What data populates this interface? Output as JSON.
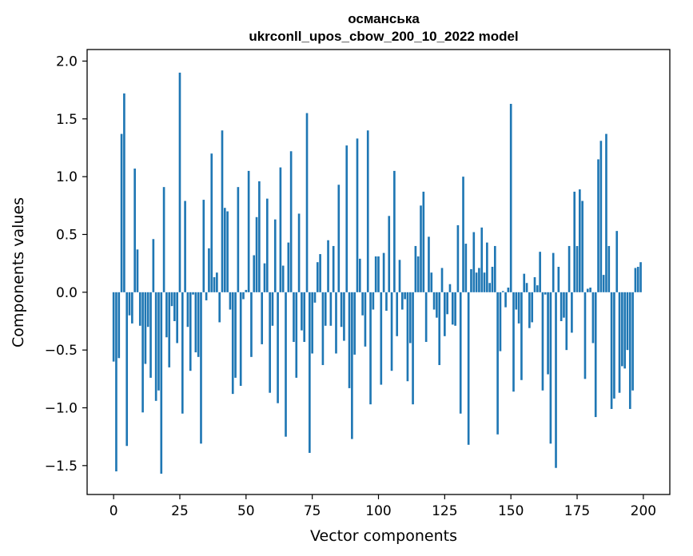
{
  "chart_data": {
    "type": "bar",
    "title": "османська",
    "subtitle": "ukrconll_upos_cbow_200_10_2022 model",
    "xlabel": "Vector components",
    "ylabel": "Components values",
    "xlim": [
      -10,
      210
    ],
    "ylim": [
      -1.75,
      2.1
    ],
    "xticks": [
      0,
      25,
      50,
      75,
      100,
      125,
      150,
      175,
      200
    ],
    "yticks": [
      -1.5,
      -1.0,
      -0.5,
      0.0,
      0.5,
      1.0,
      1.5,
      2.0
    ],
    "ytick_labels": [
      "−1.5",
      "−1.0",
      "−0.5",
      "0.0",
      "0.5",
      "1.0",
      "1.5",
      "2.0"
    ],
    "bar_color": "#1f77b4",
    "grid": false,
    "x": [
      0,
      1,
      2,
      3,
      4,
      5,
      6,
      7,
      8,
      9,
      10,
      11,
      12,
      13,
      14,
      15,
      16,
      17,
      18,
      19,
      20,
      21,
      22,
      23,
      24,
      25,
      26,
      27,
      28,
      29,
      30,
      31,
      32,
      33,
      34,
      35,
      36,
      37,
      38,
      39,
      40,
      41,
      42,
      43,
      44,
      45,
      46,
      47,
      48,
      49,
      50,
      51,
      52,
      53,
      54,
      55,
      56,
      57,
      58,
      59,
      60,
      61,
      62,
      63,
      64,
      65,
      66,
      67,
      68,
      69,
      70,
      71,
      72,
      73,
      74,
      75,
      76,
      77,
      78,
      79,
      80,
      81,
      82,
      83,
      84,
      85,
      86,
      87,
      88,
      89,
      90,
      91,
      92,
      93,
      94,
      95,
      96,
      97,
      98,
      99,
      100,
      101,
      102,
      103,
      104,
      105,
      106,
      107,
      108,
      109,
      110,
      111,
      112,
      113,
      114,
      115,
      116,
      117,
      118,
      119,
      120,
      121,
      122,
      123,
      124,
      125,
      126,
      127,
      128,
      129,
      130,
      131,
      132,
      133,
      134,
      135,
      136,
      137,
      138,
      139,
      140,
      141,
      142,
      143,
      144,
      145,
      146,
      147,
      148,
      149,
      150,
      151,
      152,
      153,
      154,
      155,
      156,
      157,
      158,
      159,
      160,
      161,
      162,
      163,
      164,
      165,
      166,
      167,
      168,
      169,
      170,
      171,
      172,
      173,
      174,
      175,
      176,
      177,
      178,
      179,
      180,
      181,
      182,
      183,
      184,
      185,
      186,
      187,
      188,
      189,
      190,
      191,
      192,
      193,
      194,
      195,
      196,
      197,
      198,
      199
    ],
    "values": [
      -0.6,
      -1.55,
      -0.57,
      1.37,
      1.72,
      -1.33,
      -0.2,
      -0.27,
      1.07,
      0.37,
      -0.29,
      -1.04,
      -0.62,
      -0.3,
      -0.74,
      0.46,
      -0.94,
      -0.85,
      -1.57,
      0.91,
      -0.39,
      -0.65,
      -0.12,
      -0.25,
      -0.44,
      1.9,
      -1.05,
      0.79,
      -0.3,
      -0.68,
      -0.02,
      -0.52,
      -0.56,
      -1.31,
      0.8,
      -0.07,
      0.38,
      1.2,
      0.13,
      0.17,
      -0.26,
      1.4,
      0.73,
      0.7,
      -0.15,
      -0.88,
      -0.74,
      0.91,
      -0.81,
      -0.06,
      0.02,
      1.05,
      -0.56,
      0.32,
      0.65,
      0.96,
      -0.45,
      0.25,
      0.81,
      -0.87,
      -0.29,
      0.63,
      -0.96,
      1.08,
      0.23,
      -1.25,
      0.43,
      1.22,
      -0.43,
      -0.74,
      0.68,
      -0.33,
      -0.43,
      1.55,
      -1.39,
      -0.53,
      -0.09,
      0.26,
      0.33,
      -0.63,
      -0.29,
      0.45,
      -0.29,
      0.4,
      -0.53,
      0.93,
      -0.3,
      -0.42,
      1.27,
      -0.83,
      -1.27,
      -0.54,
      1.33,
      0.29,
      -0.2,
      -0.47,
      1.4,
      -0.97,
      -0.15,
      0.31,
      0.31,
      -0.8,
      0.34,
      -0.16,
      0.66,
      -0.68,
      1.05,
      -0.38,
      0.28,
      -0.15,
      -0.06,
      -0.77,
      -0.44,
      -0.97,
      0.4,
      0.31,
      0.75,
      0.87,
      -0.43,
      0.48,
      0.17,
      -0.15,
      -0.22,
      -0.63,
      0.21,
      -0.38,
      -0.19,
      0.07,
      -0.28,
      -0.29,
      0.58,
      -1.05,
      1.0,
      0.42,
      -1.32,
      0.2,
      0.52,
      0.17,
      0.21,
      0.56,
      0.17,
      0.43,
      0.08,
      0.22,
      0.4,
      -1.23,
      -0.51,
      0.01,
      -0.13,
      0.04,
      1.63,
      -0.86,
      -0.15,
      -0.27,
      -0.76,
      0.16,
      0.08,
      -0.31,
      -0.26,
      0.13,
      0.06,
      0.35,
      -0.85,
      -0.02,
      -0.71,
      -1.31,
      0.34,
      -1.52,
      0.22,
      -0.25,
      -0.22,
      -0.5,
      0.4,
      -0.35,
      0.87,
      0.4,
      0.89,
      0.79,
      -0.75,
      0.03,
      0.04,
      -0.44,
      -1.08,
      1.15,
      1.31,
      0.15,
      1.37,
      0.4,
      -1.01,
      -0.92,
      0.53,
      -0.87,
      -0.64,
      -0.66,
      -0.5,
      -1.01,
      -0.85,
      0.21,
      0.22,
      0.26
    ]
  }
}
